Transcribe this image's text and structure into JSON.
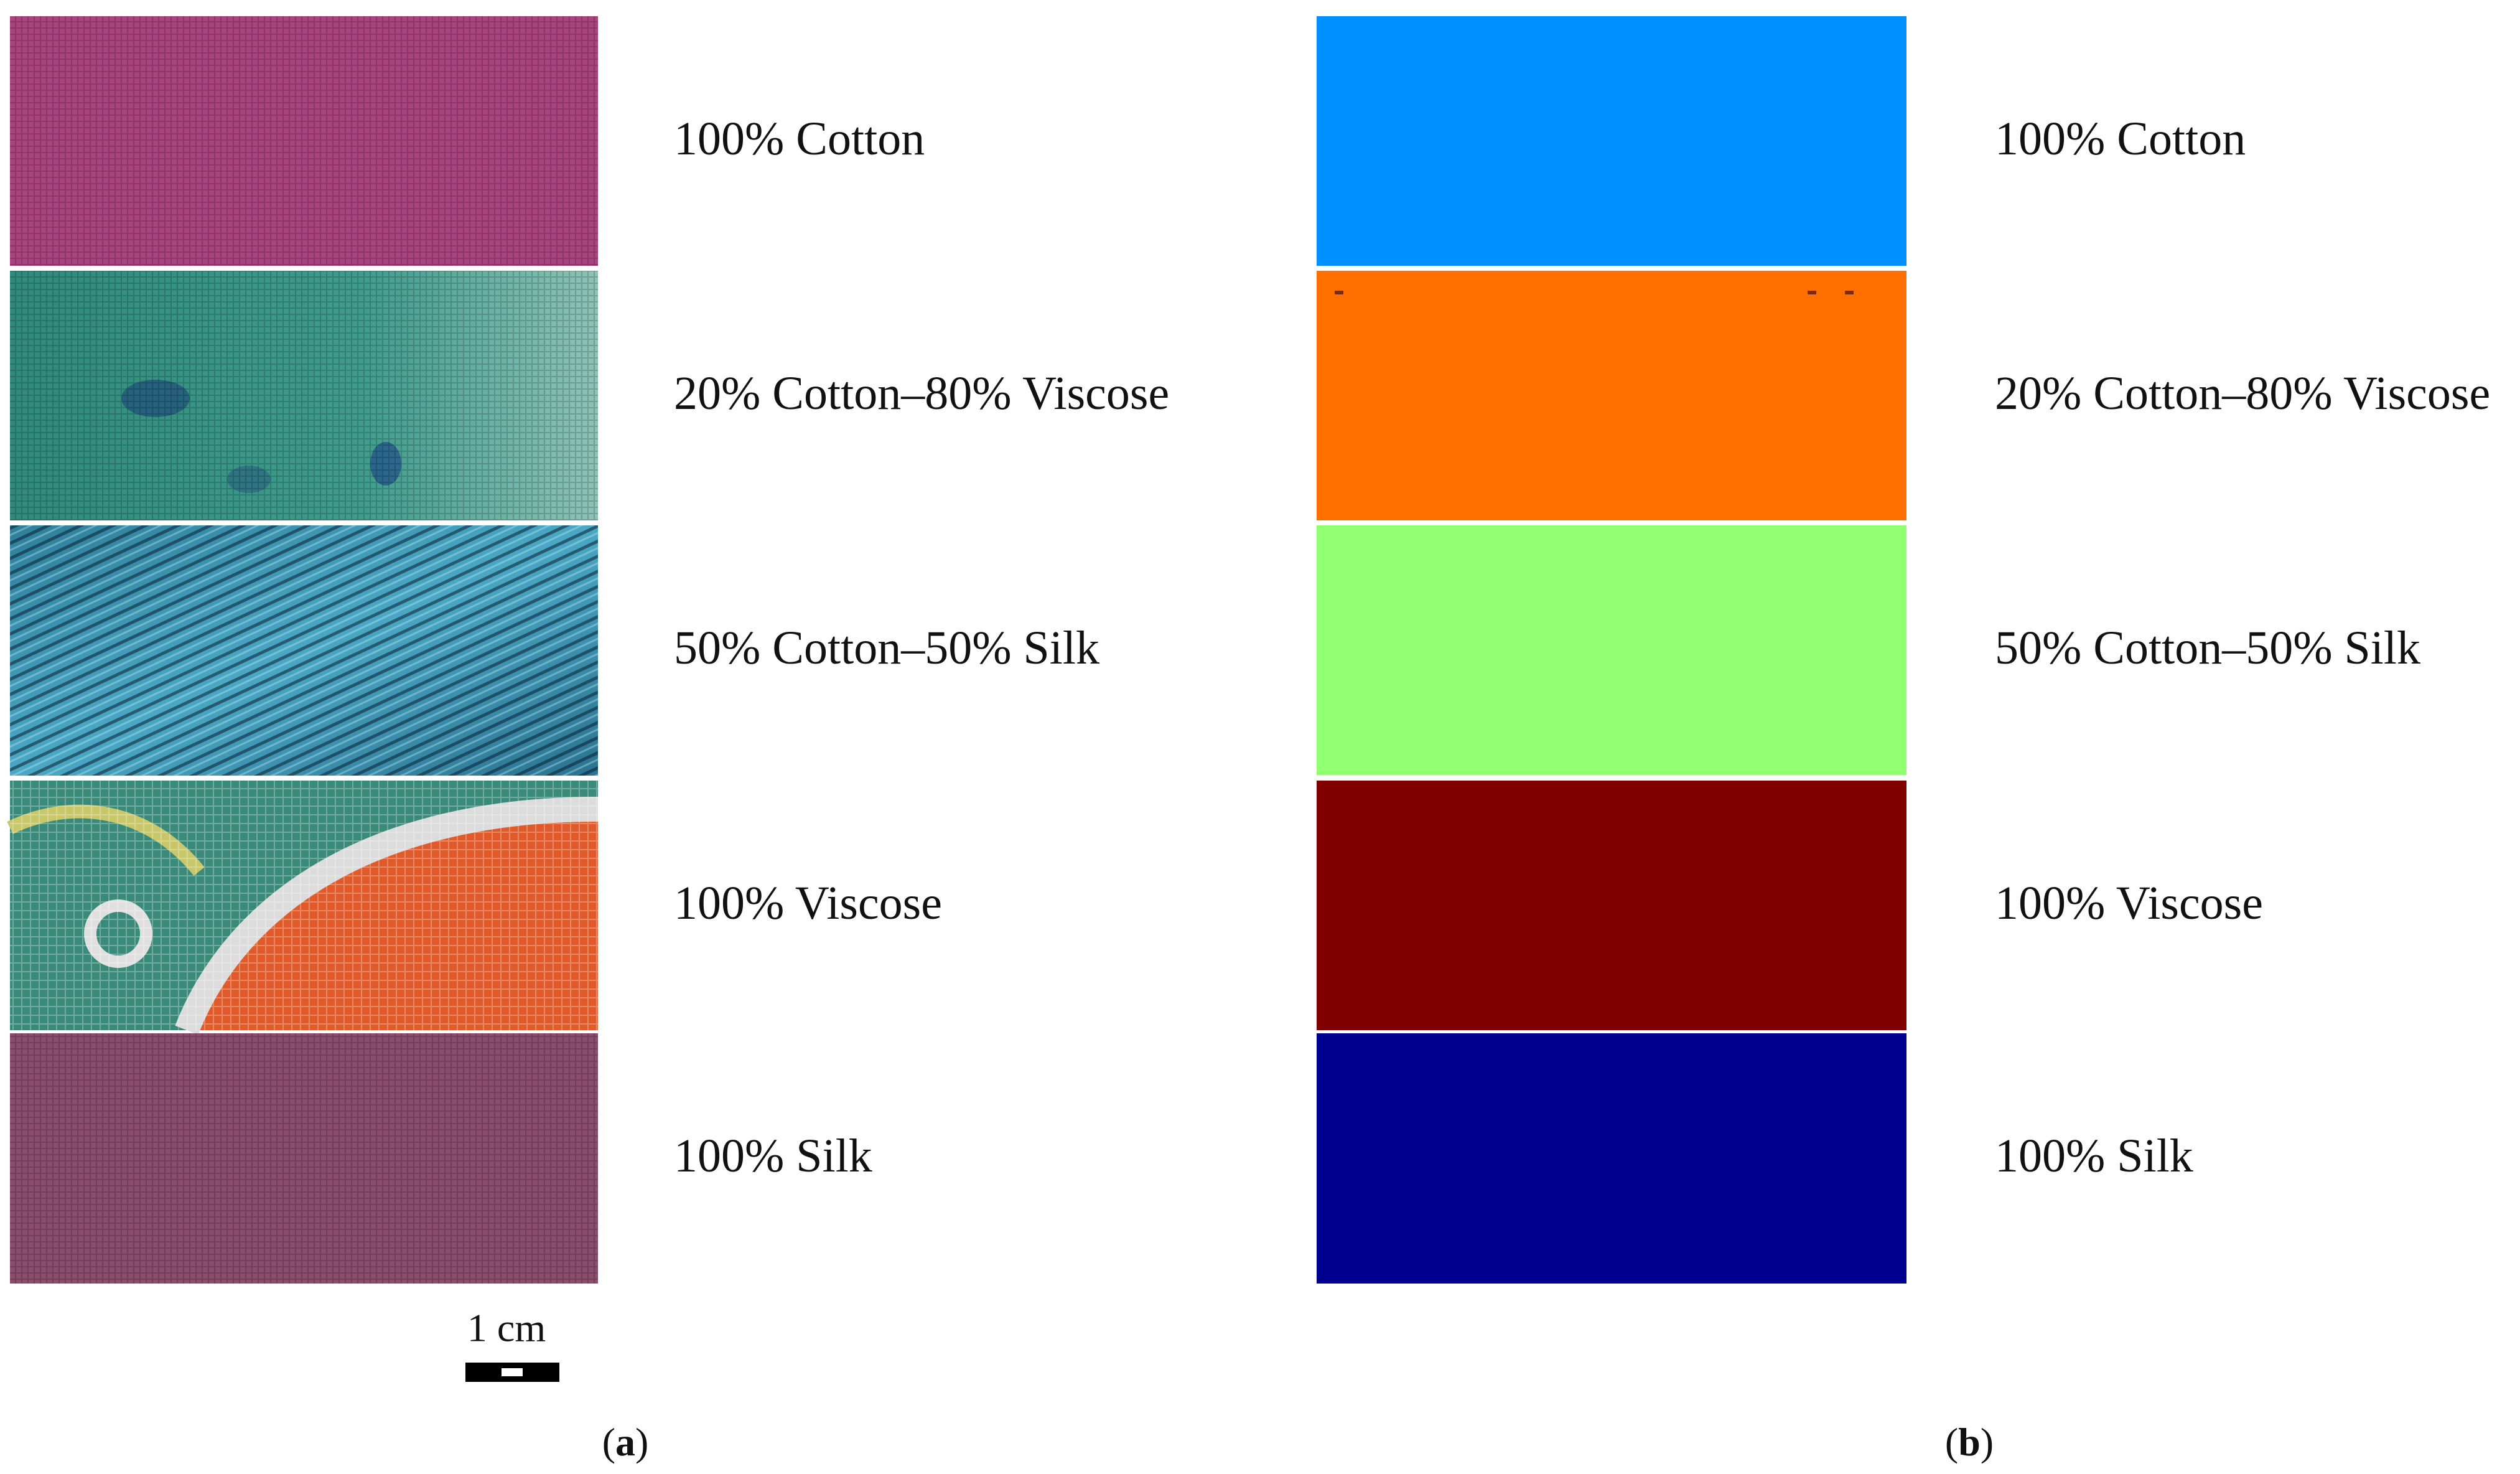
{
  "panel_a": {
    "caption": {
      "open": "(",
      "letter": "a",
      "close": ")"
    },
    "labels": [
      "100% Cotton",
      "20% Cotton–80% Viscose",
      "50% Cotton–50% Silk",
      "100% Viscose",
      "100% Silk"
    ],
    "scale_bar": "1 cm"
  },
  "panel_b": {
    "caption": {
      "open": "(",
      "letter": "b",
      "close": ")"
    },
    "labels": [
      "100% Cotton",
      "20% Cotton–80% Viscose",
      "50% Cotton–50% Silk",
      "100% Viscose",
      "100% Silk"
    ],
    "colors": [
      "#0090ff",
      "#ff7000",
      "#90ff70",
      "#800000",
      "#000090"
    ]
  }
}
